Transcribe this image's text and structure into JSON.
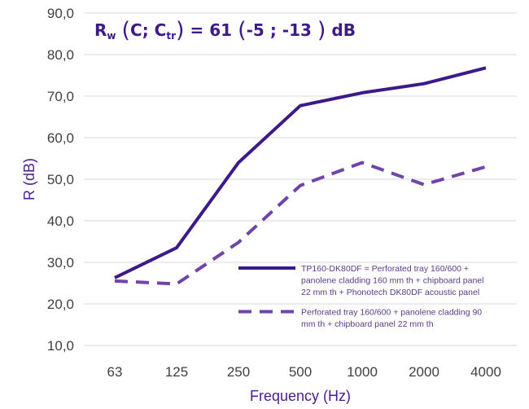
{
  "chart_data": {
    "type": "line",
    "title_parts": {
      "r": "R",
      "r_sub": "w",
      "open_paren": "(",
      "c": "C",
      "sep": ";",
      "c2": "C",
      "c2_sub": "tr",
      "close_paren": ")",
      "equals": "=",
      "rw_value": "61",
      "c_value": "-5",
      "ctr_value": "-13",
      "unit": "dB"
    },
    "xlabel": "Frequency (Hz)",
    "ylabel": "R (dB)",
    "categories": [
      "63",
      "125",
      "250",
      "500",
      "1000",
      "2000",
      "4000"
    ],
    "ylim": [
      10,
      90
    ],
    "yticks": [
      "10,0",
      "20,0",
      "30,0",
      "40,0",
      "50,0",
      "60,0",
      "70,0",
      "80,0",
      "90,0"
    ],
    "grid": true,
    "legend_position": "lower-right",
    "series": [
      {
        "name": "TP160-DK80DF = Perforated tray 160/600 + panolene cladding 160 mm th + chipboard panel 22 mm th + Phonotech DK80DF acoustic panel",
        "legend_lines": [
          "TP160-DK80DF = Perforated tray 160/600 +",
          "panolene cladding 160 mm th + chipboard panel",
          "22 mm th + Phonotech DK80DF acoustic panel"
        ],
        "style": "solid",
        "color": "#3d1a8a",
        "values": [
          26.3,
          33.5,
          54.0,
          67.7,
          70.8,
          73.0,
          76.8
        ]
      },
      {
        "name": "Perforated tray 160/600 + panolene cladding 90 mm th + chipboard panel 22 mm th",
        "legend_lines": [
          "Perforated tray 160/600 + panolene cladding 90",
          "mm th + chipboard panel 22 mm th"
        ],
        "style": "dashed",
        "color": "#7044a8",
        "values": [
          25.5,
          24.8,
          34.8,
          48.5,
          54.0,
          48.7,
          53.0
        ]
      }
    ]
  }
}
